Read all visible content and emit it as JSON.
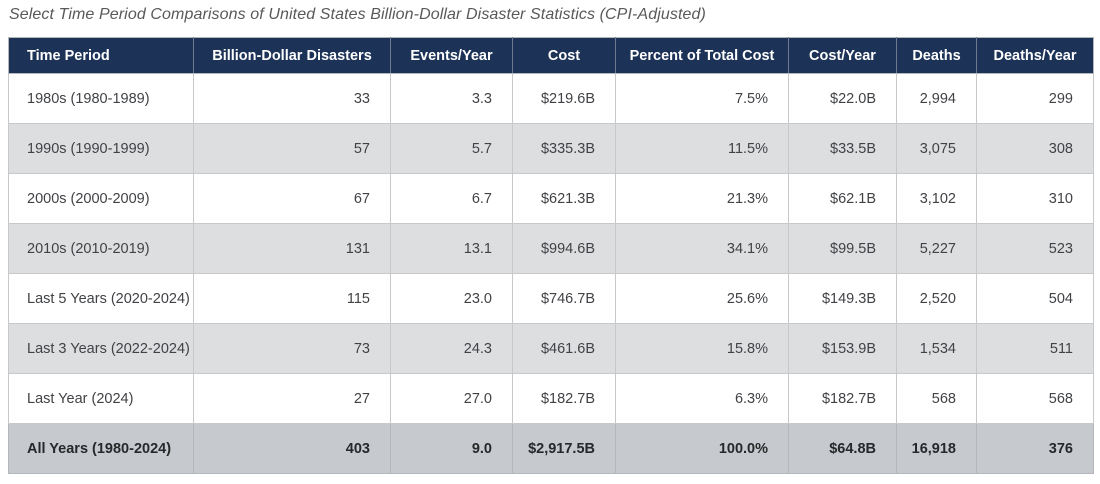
{
  "title": "Select Time Period Comparisons of United States Billion-Dollar Disaster Statistics (CPI-Adjusted)",
  "colors": {
    "header_background": "#1c3357",
    "header_text": "#ffffff",
    "row_alt_background": "#dcdee0",
    "total_row_background": "#c6c9cd",
    "body_text": "#404245",
    "title_text": "#58595b"
  },
  "table": {
    "headers": [
      "Time Period",
      "Billion-Dollar Disasters",
      "Events/Year",
      "Cost",
      "Percent of Total Cost",
      "Cost/Year",
      "Deaths",
      "Deaths/Year"
    ],
    "rows": [
      {
        "emphasis": false,
        "cells": [
          "1980s (1980-1989)",
          "33",
          "3.3",
          "$219.6B",
          "7.5%",
          "$22.0B",
          "2,994",
          "299"
        ]
      },
      {
        "emphasis": false,
        "cells": [
          "1990s (1990-1999)",
          "57",
          "5.7",
          "$335.3B",
          "11.5%",
          "$33.5B",
          "3,075",
          "308"
        ]
      },
      {
        "emphasis": false,
        "cells": [
          "2000s (2000-2009)",
          "67",
          "6.7",
          "$621.3B",
          "21.3%",
          "$62.1B",
          "3,102",
          "310"
        ]
      },
      {
        "emphasis": false,
        "cells": [
          "2010s (2010-2019)",
          "131",
          "13.1",
          "$994.6B",
          "34.1%",
          "$99.5B",
          "5,227",
          "523"
        ]
      },
      {
        "emphasis": false,
        "cells": [
          "Last 5 Years (2020-2024)",
          "115",
          "23.0",
          "$746.7B",
          "25.6%",
          "$149.3B",
          "2,520",
          "504"
        ]
      },
      {
        "emphasis": false,
        "cells": [
          "Last 3 Years (2022-2024)",
          "73",
          "24.3",
          "$461.6B",
          "15.8%",
          "$153.9B",
          "1,534",
          "511"
        ]
      },
      {
        "emphasis": false,
        "cells": [
          "Last Year (2024)",
          "27",
          "27.0",
          "$182.7B",
          "6.3%",
          "$182.7B",
          "568",
          "568"
        ]
      },
      {
        "emphasis": true,
        "cells": [
          "All Years (1980-2024)",
          "403",
          "9.0",
          "$2,917.5B",
          "100.0%",
          "$64.8B",
          "16,918",
          "376"
        ]
      }
    ]
  },
  "chart_data": {
    "type": "table",
    "title": "Select Time Period Comparisons of United States Billion-Dollar Disaster Statistics (CPI-Adjusted)",
    "columns": [
      "Time Period",
      "Billion-Dollar Disasters",
      "Events/Year",
      "Cost",
      "Percent of Total Cost",
      "Cost/Year",
      "Deaths",
      "Deaths/Year"
    ],
    "rows": [
      [
        "1980s (1980-1989)",
        33,
        3.3,
        "$219.6B",
        "7.5%",
        "$22.0B",
        2994,
        299
      ],
      [
        "1990s (1990-1999)",
        57,
        5.7,
        "$335.3B",
        "11.5%",
        "$33.5B",
        3075,
        308
      ],
      [
        "2000s (2000-2009)",
        67,
        6.7,
        "$621.3B",
        "21.3%",
        "$62.1B",
        3102,
        310
      ],
      [
        "2010s (2010-2019)",
        131,
        13.1,
        "$994.6B",
        "34.1%",
        "$99.5B",
        5227,
        523
      ],
      [
        "Last 5 Years (2020-2024)",
        115,
        23.0,
        "$746.7B",
        "25.6%",
        "$149.3B",
        2520,
        504
      ],
      [
        "Last 3 Years (2022-2024)",
        73,
        24.3,
        "$461.6B",
        "15.8%",
        "$153.9B",
        1534,
        511
      ],
      [
        "Last Year (2024)",
        27,
        27.0,
        "$182.7B",
        "6.3%",
        "$182.7B",
        568,
        568
      ],
      [
        "All Years (1980-2024)",
        403,
        9.0,
        "$2,917.5B",
        "100.0%",
        "$64.8B",
        16918,
        376
      ]
    ]
  }
}
